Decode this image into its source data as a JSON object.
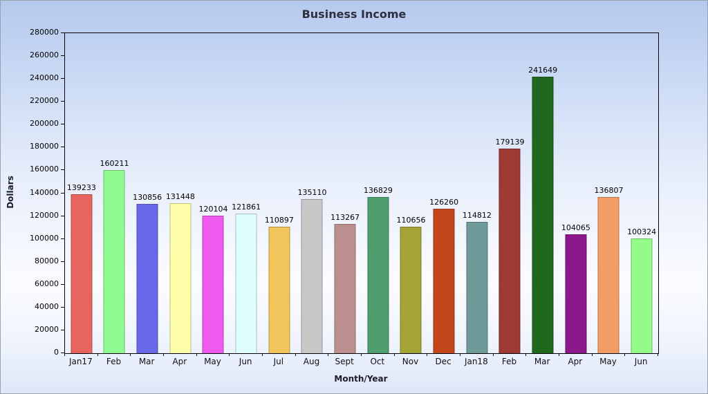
{
  "chart_data": {
    "type": "bar",
    "title": "Business Income",
    "xlabel": "Month/Year",
    "ylabel": "Dollars",
    "ylim": [
      0,
      280000
    ],
    "y_tick_step": 20000,
    "grid": false,
    "legend": "none",
    "categories": [
      "Jan17",
      "Feb",
      "Mar",
      "Apr",
      "May",
      "Jun",
      "Jul",
      "Aug",
      "Sept",
      "Oct",
      "Nov",
      "Dec",
      "Jan18",
      "Feb",
      "Mar",
      "Apr",
      "May",
      "Jun"
    ],
    "values": [
      139233,
      160211,
      130856,
      131448,
      120104,
      121861,
      110897,
      135110,
      113267,
      136829,
      110656,
      126260,
      114812,
      179139,
      241649,
      104065,
      136807,
      100324
    ],
    "bar_colors": [
      "#e8655f",
      "#90fb90",
      "#6868e8",
      "#ffffaa",
      "#ee59ee",
      "#dfffff",
      "#f2c65c",
      "#c8c8c8",
      "#bc8f8f",
      "#4e9e6f",
      "#a5a437",
      "#c3461c",
      "#6f9a9a",
      "#9e3a31",
      "#1f691f",
      "#8c188c",
      "#f39c63",
      "#93fb88"
    ],
    "background_top_color": "#b5c9ee",
    "background_bottom_color": "#dde7f7"
  }
}
